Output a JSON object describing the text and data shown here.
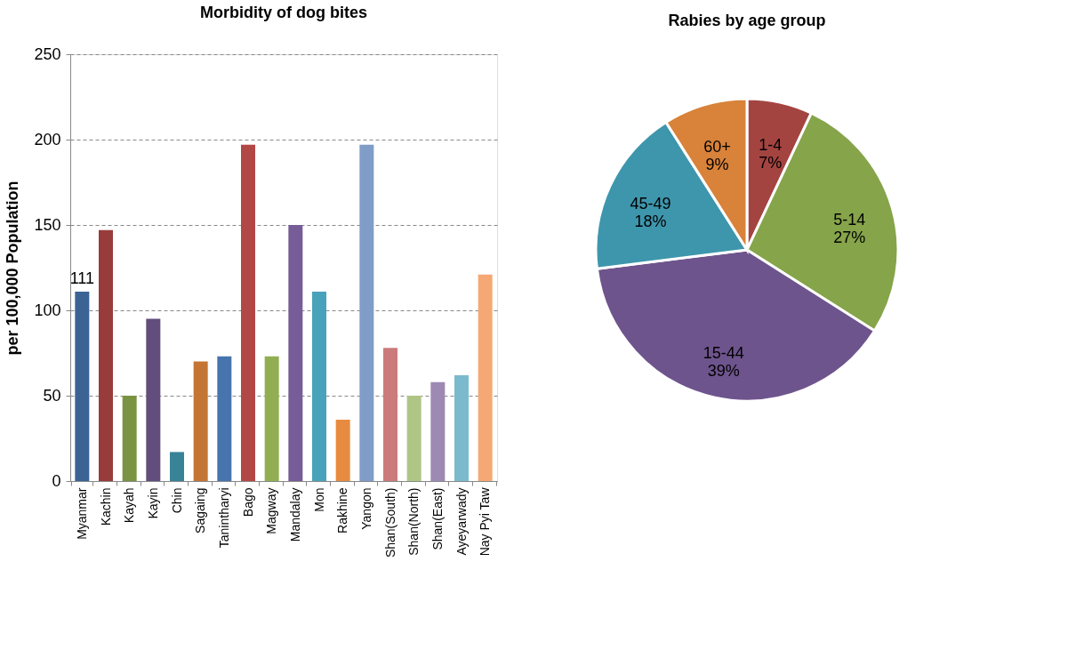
{
  "chart_data": [
    {
      "type": "bar",
      "title": "Morbidity of dog bites",
      "ylabel": "per 100,000 Population",
      "categories": [
        "Myanmar",
        "Kachin",
        "Kayah",
        "Kayin",
        "Chin",
        "Sagaing",
        "Tanintharyi",
        "Bago",
        "Magway",
        "Mandalay",
        "Mon",
        "Rakhine",
        "Yangon",
        "Shan(South)",
        "Shan(North)",
        "Shan(East)",
        "Ayeyarwady",
        "Nay Pyi Taw"
      ],
      "values": [
        111,
        147,
        50,
        95,
        17,
        70,
        73,
        197,
        73,
        150,
        111,
        36,
        197,
        78,
        50,
        58,
        62,
        121
      ],
      "value_labels": [
        "111",
        null,
        null,
        null,
        null,
        null,
        null,
        null,
        null,
        null,
        null,
        null,
        null,
        null,
        null,
        null,
        null,
        null
      ],
      "colors": [
        "#3b6495",
        "#973c3b",
        "#7a9342",
        "#624d7c",
        "#388396",
        "#c47533",
        "#4874ae",
        "#b24846",
        "#92ae53",
        "#775d97",
        "#48a2ba",
        "#e78b40",
        "#7f9dc7",
        "#cb7b7b",
        "#aec585",
        "#9d89b3",
        "#7bbacd",
        "#f6a874"
      ],
      "ylim": [
        0,
        250
      ],
      "yticks": [
        0,
        50,
        100,
        150,
        200,
        250
      ],
      "grid": "y",
      "legend": false
    },
    {
      "type": "pie",
      "title": "Rabies by age group",
      "categories": [
        "1-4",
        "5-14",
        "15-44",
        "45-49",
        "60+"
      ],
      "values": [
        7,
        27,
        39,
        18,
        9
      ],
      "value_labels": [
        "7%",
        "27%",
        "39%",
        "18%",
        "9%"
      ],
      "colors": [
        "#a44441",
        "#86a44a",
        "#6e548d",
        "#3e96ad",
        "#d8823a"
      ],
      "legend": false
    }
  ]
}
